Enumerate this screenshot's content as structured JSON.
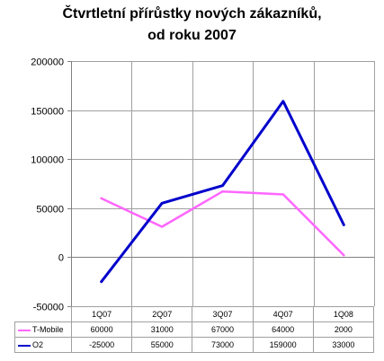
{
  "chart_data": {
    "type": "line",
    "title_line1": "Čtvrtletní přírůstky nových zákazníků,",
    "title_line2": "od roku 2007",
    "categories": [
      "1Q07",
      "2Q07",
      "3Q07",
      "4Q07",
      "1Q08"
    ],
    "ylim": [
      -50000,
      200000
    ],
    "yticks": [
      "200000",
      "150000",
      "100000",
      "50000",
      "0",
      "-50000"
    ],
    "ytick_values": [
      200000,
      150000,
      100000,
      50000,
      0,
      -50000
    ],
    "grid": true,
    "legend": "data table below chart",
    "series": [
      {
        "name": "T-Mobile",
        "color": "#ff66ff",
        "values": [
          60000,
          31000,
          67000,
          64000,
          2000
        ]
      },
      {
        "name": "O2",
        "color": "#0000cc",
        "values": [
          -25000,
          55000,
          73000,
          159000,
          33000
        ]
      }
    ]
  }
}
